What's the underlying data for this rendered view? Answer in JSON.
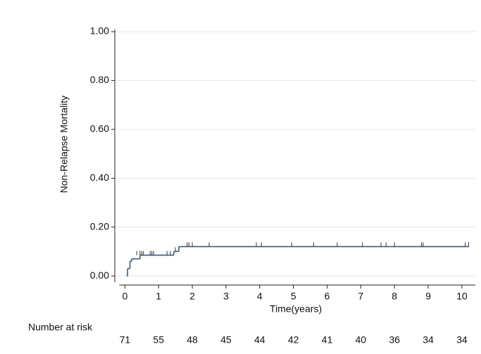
{
  "chart_data": {
    "type": "step",
    "x_label": "Time(years)",
    "y_label": "Non-Relapse Mortality",
    "series": [
      {
        "x": [
          0.05,
          0.08,
          0.15,
          0.2,
          0.45,
          1.45,
          1.6,
          10.2
        ],
        "values": [
          0,
          0.03,
          0.06,
          0.07,
          0.085,
          0.1,
          0.12,
          0.12
        ],
        "color": "#3d5a78"
      }
    ],
    "censored": {
      "x": [
        0.35,
        0.45,
        0.5,
        0.55,
        0.75,
        0.8,
        0.85,
        1.25,
        1.35,
        1.5,
        1.85,
        1.9,
        2.0,
        2.5,
        3.9,
        4.05,
        4.95,
        5.6,
        6.3,
        7.05,
        7.6,
        7.75,
        8.0,
        8.8,
        8.85,
        10.1,
        10.2
      ],
      "values": [
        0.085,
        0.085,
        0.085,
        0.085,
        0.085,
        0.085,
        0.085,
        0.085,
        0.085,
        0.1,
        0.12,
        0.12,
        0.12,
        0.12,
        0.12,
        0.12,
        0.12,
        0.12,
        0.12,
        0.12,
        0.12,
        0.12,
        0.12,
        0.12,
        0.12,
        0.12,
        0.12
      ]
    },
    "xlim": [
      -0.3,
      10.4
    ],
    "xticks": [
      0,
      1,
      2,
      3,
      4,
      5,
      6,
      7,
      8,
      9,
      10
    ],
    "ylim": [
      -0.02,
      1.0
    ],
    "yticks": [
      {
        "value": 0,
        "label": "0.00"
      },
      {
        "value": 0.2,
        "label": "0.20"
      },
      {
        "value": 0.4,
        "label": "0.40"
      },
      {
        "value": 0.6,
        "label": "0.60"
      },
      {
        "value": 0.8,
        "label": "0.80"
      },
      {
        "value": 1.0,
        "label": "1.00"
      }
    ],
    "grid": true,
    "risk_table": {
      "title": "Number at risk",
      "times": [
        0,
        1,
        2,
        3,
        4,
        5,
        6,
        7,
        8,
        9,
        10
      ],
      "values": [
        71,
        55,
        48,
        45,
        44,
        42,
        41,
        40,
        36,
        34,
        34
      ]
    }
  }
}
